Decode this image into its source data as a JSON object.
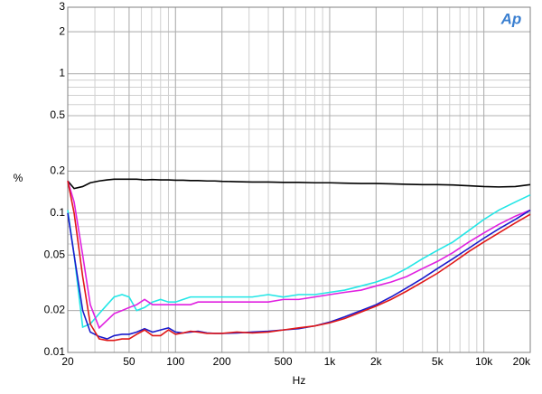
{
  "chart_data": {
    "type": "line",
    "logo": "Ap",
    "y_label": "%",
    "x_label": "Hz",
    "x_log": true,
    "y_log": true,
    "grid": true,
    "minor_grid": true,
    "xlim": [
      20,
      20000
    ],
    "ylim": [
      0.01,
      3
    ],
    "xticks": [
      20,
      50,
      100,
      200,
      500,
      {
        "value": 1000,
        "label": "1k"
      },
      {
        "value": 2000,
        "label": "2k"
      },
      {
        "value": 5000,
        "label": "5k"
      },
      {
        "value": 10000,
        "label": "10k"
      },
      {
        "value": 20000,
        "label": "20k"
      }
    ],
    "yticks": [
      0.01,
      0.02,
      0.05,
      0.1,
      0.2,
      0.5,
      1,
      2,
      3
    ],
    "x": [
      20,
      22,
      25,
      28,
      32,
      36,
      40,
      45,
      50,
      56,
      63,
      71,
      80,
      90,
      100,
      112,
      125,
      140,
      160,
      180,
      200,
      250,
      315,
      400,
      500,
      630,
      800,
      1000,
      1250,
      1600,
      2000,
      2500,
      3150,
      4000,
      5000,
      6300,
      8000,
      10000,
      12500,
      16000,
      20000
    ],
    "series": [
      {
        "color": "#000000",
        "values": [
          0.17,
          0.15,
          0.155,
          0.165,
          0.17,
          0.173,
          0.175,
          0.175,
          0.175,
          0.175,
          0.173,
          0.174,
          0.173,
          0.173,
          0.172,
          0.172,
          0.171,
          0.171,
          0.17,
          0.17,
          0.169,
          0.168,
          0.167,
          0.167,
          0.166,
          0.166,
          0.165,
          0.165,
          0.164,
          0.163,
          0.163,
          0.162,
          0.161,
          0.16,
          0.16,
          0.159,
          0.157,
          0.155,
          0.154,
          0.155,
          0.16
        ]
      },
      {
        "color": "#22e6e6",
        "values": [
          0.105,
          0.05,
          0.0152,
          0.016,
          0.019,
          0.022,
          0.025,
          0.026,
          0.025,
          0.02,
          0.021,
          0.023,
          0.024,
          0.023,
          0.023,
          0.024,
          0.025,
          0.025,
          0.025,
          0.025,
          0.025,
          0.025,
          0.025,
          0.026,
          0.025,
          0.026,
          0.026,
          0.027,
          0.028,
          0.03,
          0.032,
          0.035,
          0.04,
          0.047,
          0.054,
          0.062,
          0.075,
          0.09,
          0.105,
          0.12,
          0.135
        ]
      },
      {
        "color": "#e020e0",
        "values": [
          0.17,
          0.12,
          0.05,
          0.022,
          0.015,
          0.017,
          0.019,
          0.02,
          0.021,
          0.022,
          0.024,
          0.022,
          0.022,
          0.022,
          0.022,
          0.022,
          0.022,
          0.023,
          0.023,
          0.023,
          0.023,
          0.023,
          0.023,
          0.023,
          0.024,
          0.024,
          0.025,
          0.026,
          0.027,
          0.028,
          0.03,
          0.032,
          0.035,
          0.04,
          0.045,
          0.052,
          0.062,
          0.072,
          0.083,
          0.095,
          0.105
        ]
      },
      {
        "color": "#1a1acc",
        "values": [
          0.1,
          0.05,
          0.02,
          0.014,
          0.013,
          0.0125,
          0.0132,
          0.0135,
          0.0135,
          0.014,
          0.0148,
          0.014,
          0.0145,
          0.015,
          0.014,
          0.0138,
          0.014,
          0.0142,
          0.0138,
          0.0137,
          0.0137,
          0.0138,
          0.014,
          0.0142,
          0.0145,
          0.0148,
          0.0155,
          0.0165,
          0.018,
          0.02,
          0.022,
          0.025,
          0.029,
          0.034,
          0.04,
          0.047,
          0.056,
          0.066,
          0.077,
          0.09,
          0.105
        ]
      },
      {
        "color": "#e01818",
        "values": [
          0.17,
          0.1,
          0.035,
          0.016,
          0.0125,
          0.0122,
          0.0122,
          0.0125,
          0.0125,
          0.0135,
          0.0145,
          0.0132,
          0.0132,
          0.0145,
          0.0135,
          0.0138,
          0.0142,
          0.014,
          0.0137,
          0.0137,
          0.0137,
          0.014,
          0.0138,
          0.014,
          0.0145,
          0.015,
          0.0155,
          0.0163,
          0.0175,
          0.0195,
          0.0215,
          0.024,
          0.0275,
          0.032,
          0.037,
          0.044,
          0.053,
          0.062,
          0.072,
          0.085,
          0.098
        ]
      }
    ]
  }
}
